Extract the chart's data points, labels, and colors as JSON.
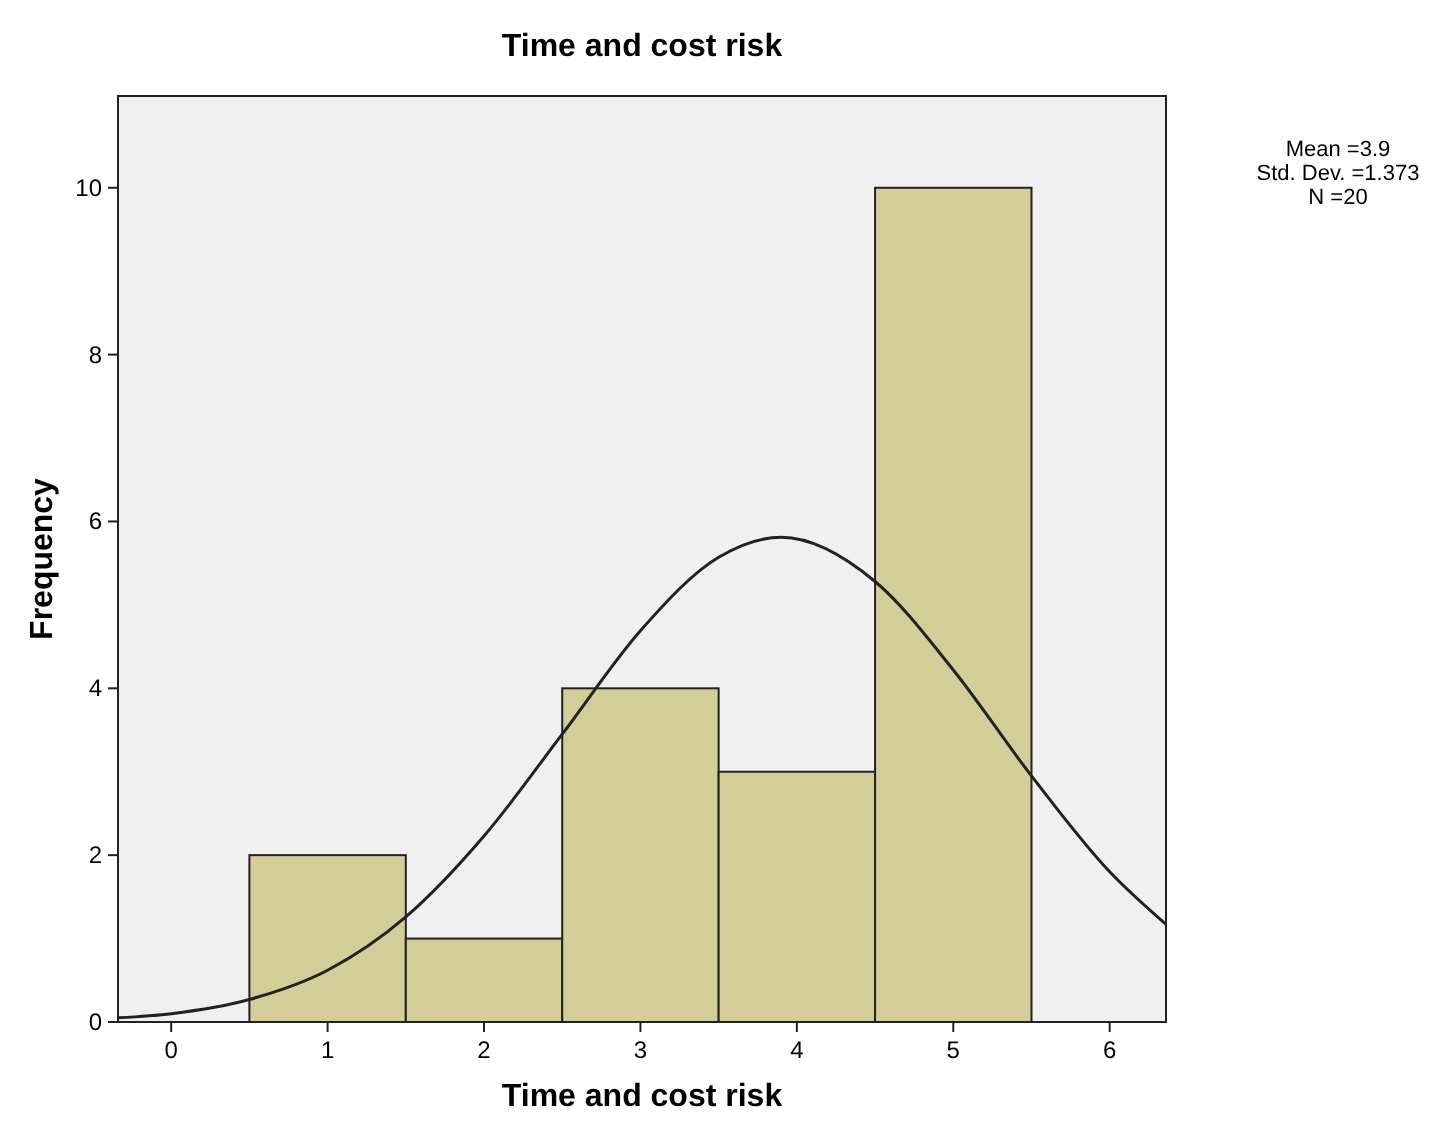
{
  "chart_data": {
    "type": "histogram",
    "title": "Time and cost risk",
    "xlabel": "Time and cost risk",
    "ylabel": "Frequency",
    "series": [
      {
        "bins": [
          0.5,
          1.5,
          2.5,
          3.5,
          4.5,
          5.5
        ],
        "values": [
          2,
          1,
          4,
          3,
          10
        ],
        "color": "#d3ce97"
      },
      {
        "type": "line",
        "color": "#222222",
        "x": [
          -0.34,
          0,
          0.5,
          1,
          1.5,
          2,
          2.5,
          3,
          3.5,
          3.9,
          4.5,
          5,
          5.5,
          6,
          6.36
        ],
        "values": [
          0.05,
          0.1,
          0.27,
          0.62,
          1.26,
          2.23,
          3.45,
          4.69,
          5.57,
          5.81,
          5.28,
          4.22,
          2.95,
          1.8,
          1.17
        ]
      }
    ],
    "xlim": [
      -0.34,
      6.36
    ],
    "ylim": [
      0,
      11.1
    ],
    "xticks": [
      0,
      1,
      2,
      3,
      4,
      5,
      6
    ],
    "yticks": [
      0,
      2,
      4,
      6,
      8,
      10
    ],
    "grid": false,
    "annotations": [
      "Mean =3.9",
      "Std. Dev. =1.373",
      "N =20"
    ]
  }
}
